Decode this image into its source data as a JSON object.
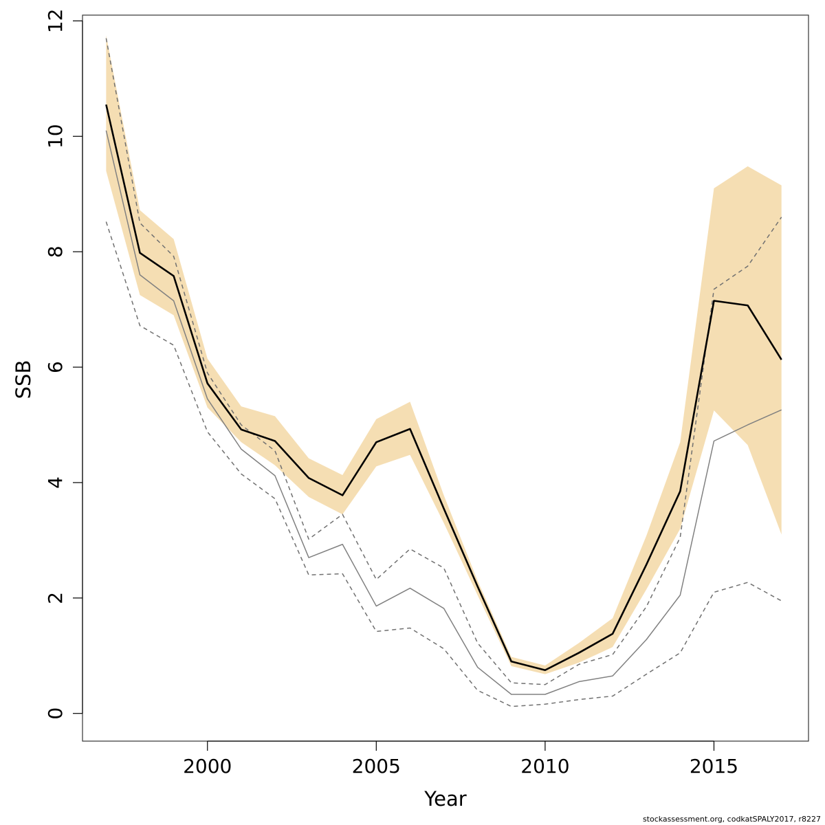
{
  "chart_data": {
    "type": "line",
    "xlabel": "Year",
    "ylabel": "SSB",
    "xlim": [
      1996.3,
      2017.8
    ],
    "ylim": [
      -0.48,
      12.1
    ],
    "x_ticks": [
      2000,
      2005,
      2010,
      2015
    ],
    "y_ticks": [
      0,
      2,
      4,
      6,
      8,
      10,
      12
    ],
    "grid": false,
    "colors": {
      "band": "#f5deb3",
      "estimate": "#000000",
      "retro": "#808080",
      "retro_ci": "#707070",
      "frame": "#333333"
    },
    "x": [
      1997,
      1998,
      1999,
      2000,
      2001,
      2002,
      2003,
      2004,
      2005,
      2006,
      2007,
      2008,
      2009,
      2010,
      2011,
      2012,
      2013,
      2014,
      2015,
      2016,
      2017
    ],
    "band_lower": [
      9.4,
      7.25,
      6.9,
      5.3,
      4.7,
      4.3,
      3.75,
      3.45,
      4.28,
      4.48,
      3.3,
      2.05,
      0.82,
      0.68,
      0.88,
      1.15,
      2.15,
      3.2,
      5.25,
      4.65,
      3.1
    ],
    "band_upper": [
      11.75,
      8.72,
      8.22,
      6.15,
      5.32,
      5.15,
      4.42,
      4.13,
      5.1,
      5.4,
      3.78,
      2.3,
      0.98,
      0.83,
      1.22,
      1.65,
      3.08,
      4.7,
      9.1,
      9.48,
      9.15
    ],
    "series": [
      {
        "style": "thick-solid",
        "values": [
          10.55,
          7.98,
          7.58,
          5.72,
          4.92,
          4.72,
          4.08,
          3.78,
          4.7,
          4.93,
          3.55,
          2.2,
          0.9,
          0.75,
          1.05,
          1.38,
          2.58,
          3.85,
          7.15,
          7.07,
          6.13
        ]
      },
      {
        "style": "grey-solid",
        "values": [
          10.1,
          7.6,
          7.15,
          5.45,
          4.58,
          4.12,
          2.7,
          2.93,
          1.86,
          2.17,
          1.82,
          0.8,
          0.33,
          0.33,
          0.55,
          0.65,
          1.28,
          2.05,
          4.72,
          5.0,
          5.26
        ]
      },
      {
        "style": "grey-dashed",
        "values": [
          11.7,
          8.5,
          7.92,
          5.9,
          5.0,
          4.55,
          3.02,
          3.45,
          2.32,
          2.85,
          2.52,
          1.22,
          0.53,
          0.5,
          0.85,
          1.02,
          1.85,
          3.05,
          7.35,
          7.75,
          8.6
        ]
      },
      {
        "style": "grey-dashed",
        "values": [
          8.52,
          6.72,
          6.38,
          4.88,
          4.15,
          3.72,
          2.4,
          2.42,
          1.42,
          1.48,
          1.12,
          0.4,
          0.12,
          0.16,
          0.24,
          0.3,
          0.68,
          1.05,
          2.1,
          2.27,
          1.95
        ]
      }
    ],
    "footer": "stockassessment.org, codkatSPALY2017, r8227"
  }
}
